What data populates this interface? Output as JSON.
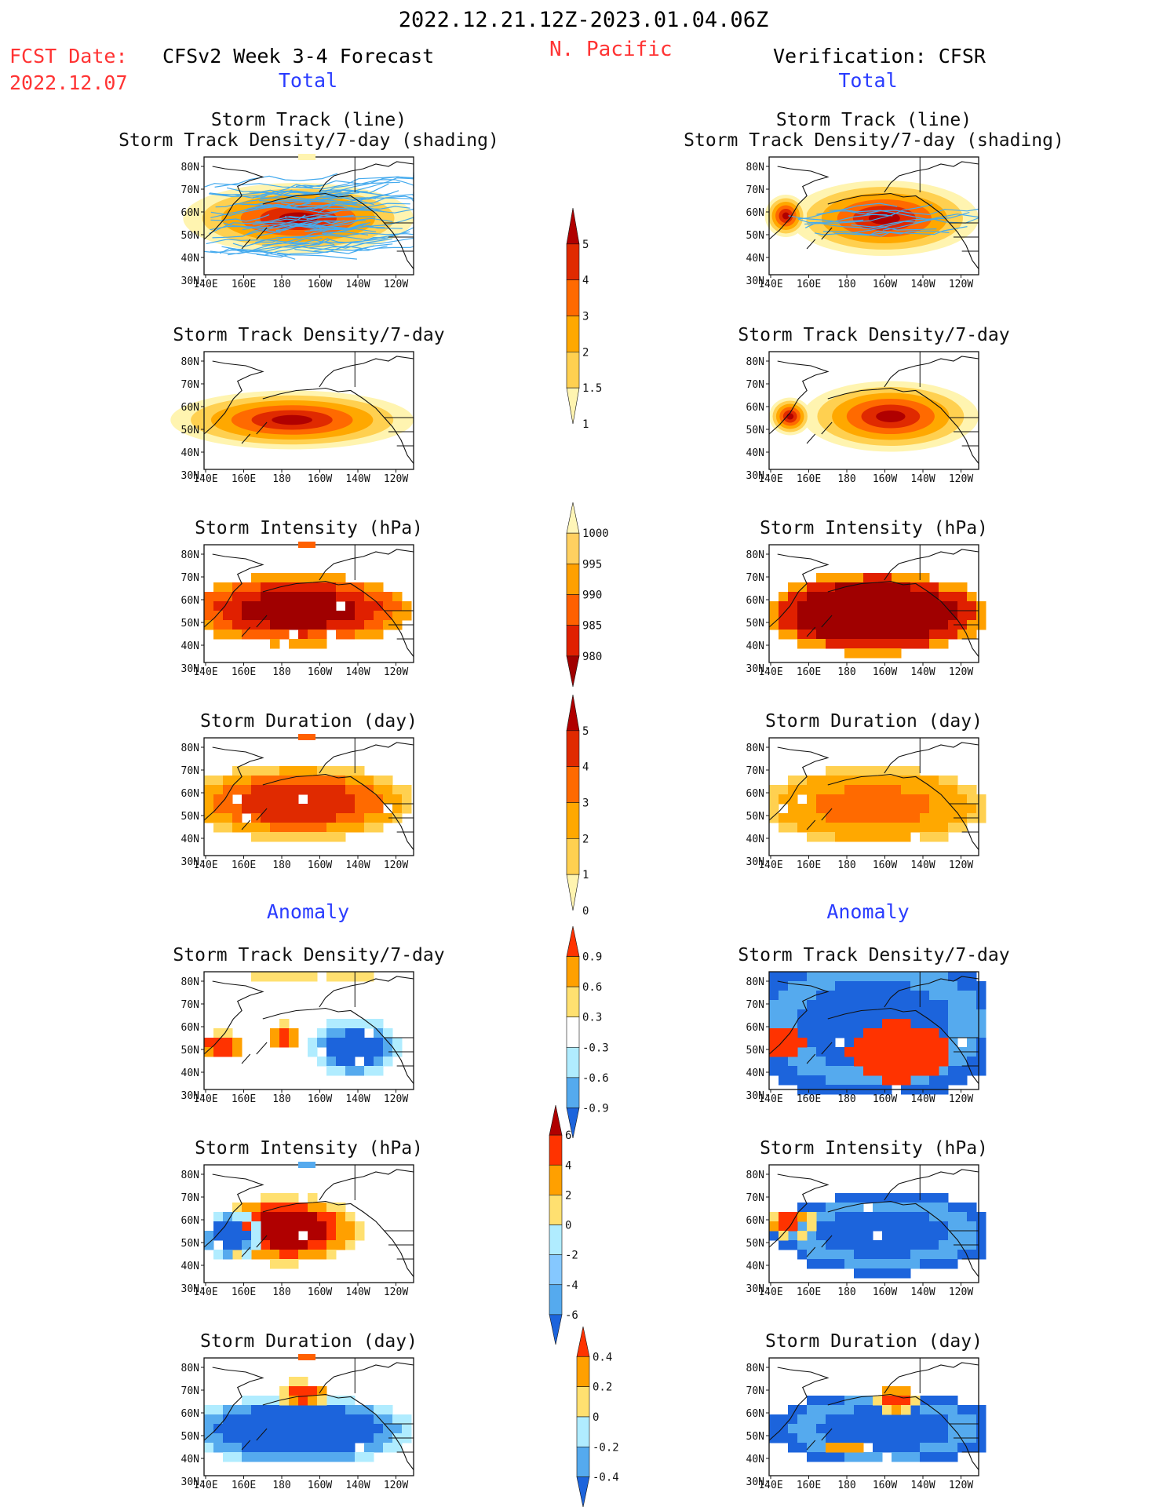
{
  "header": {
    "date_range": "2022.12.21.12Z-2023.01.04.06Z",
    "region": "N. Pacific",
    "fcst_label": "FCST Date:",
    "fcst_date": "2022.12.07",
    "model_title": "CFSv2 Week 3-4 Forecast",
    "verif_title": "Verification: CFSR",
    "total_left": "Total",
    "total_right": "Total",
    "anomaly_left": "Anomaly",
    "anomaly_right": "Anomaly"
  },
  "colors": {
    "title": "#111111",
    "red_text": "#ff3333",
    "blue_text": "#2a3cff",
    "track_line": "#44aaee"
  },
  "axes": {
    "lat_labels": [
      "80N",
      "70N",
      "60N",
      "50N",
      "40N",
      "30N"
    ],
    "lon_labels": [
      "140E",
      "160E",
      "180",
      "160W",
      "140W",
      "120W"
    ]
  },
  "panel_titles": {
    "track_line": "Storm Track (line)",
    "track_shading": "Storm Track Density/7-day (shading)",
    "density": "Storm Track Density/7-day",
    "intensity": "Storm Intensity (hPa)",
    "duration": "Storm Duration (day)"
  },
  "colorbars": {
    "density_total": {
      "labels": [
        "5",
        "4",
        "3",
        "2",
        "1.5",
        "1"
      ],
      "colors": [
        "#b00000",
        "#e02a00",
        "#ff6a00",
        "#ffa800",
        "#ffd050",
        "#fff4b0"
      ]
    },
    "intensity_total": {
      "labels": [
        "1000",
        "995",
        "990",
        "985",
        "980"
      ],
      "colors": [
        "#fff6b8",
        "#ffd060",
        "#ffa000",
        "#ff6000",
        "#e02000",
        "#a00000"
      ]
    },
    "duration_total": {
      "labels": [
        "5",
        "4",
        "3",
        "2",
        "1",
        "0"
      ],
      "colors": [
        "#b00000",
        "#e02a00",
        "#ff6a00",
        "#ffa800",
        "#ffd050",
        "#fff4b0"
      ]
    },
    "density_anom": {
      "labels": [
        "0.9",
        "0.6",
        "0.3",
        "-0.3",
        "-0.6",
        "-0.9"
      ],
      "colors": [
        "#ff3300",
        "#ffa000",
        "#ffe070",
        "#ffffff",
        "#b0ecff",
        "#55aaee",
        "#1c64dc"
      ]
    },
    "intensity_anom": {
      "labels": [
        "6",
        "4",
        "2",
        "0",
        "-2",
        "-4",
        "-6"
      ],
      "colors": [
        "#b00000",
        "#ff3300",
        "#ffa000",
        "#ffe070",
        "#b0ecff",
        "#85c8ff",
        "#55aaee",
        "#1c64dc"
      ]
    },
    "duration_anom": {
      "labels": [
        "0.4",
        "0.2",
        "0",
        "-0.2",
        "-0.4"
      ],
      "colors": [
        "#ff3300",
        "#ffa000",
        "#ffe070",
        "#b0ecff",
        "#55aaee",
        "#1c64dc"
      ]
    }
  }
}
